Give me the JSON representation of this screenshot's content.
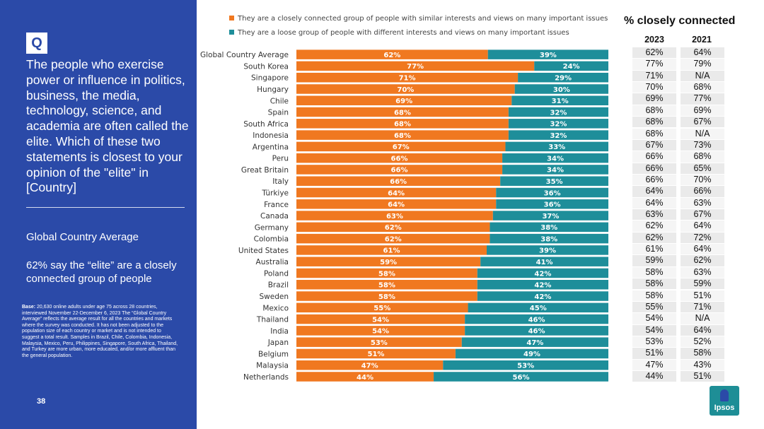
{
  "sidebar": {
    "badge": "Q",
    "question": "The people who exercise power or influence in politics, business, the media, technology, science, and academia are often called the elite. Which of these two statements is closest to your opinion of the \"elite\" in [Country]",
    "gca_title": "Global Country Average",
    "gca_text": "62% say the “elite” are a closely connected group of people",
    "base_label": "Base:",
    "base_text": "20,630 online adults under age 75 across 28 countries, interviewed November 22-December 6, 2023 The “Global Country Average” reflects the average result for all the countries and markets where the survey was conducted. It has not been adjusted to the population size of each country or market and is not intended to suggest a total result. Samples in Brazil, Chile, Colombia, Indonesia, Malaysia, Mexico, Peru, Philippines, Singapore, South Africa, Thailand, and Turkey are more urban, more educated, and/or more affluent than the general population.",
    "page_number": "38"
  },
  "legend": {
    "closely": "They are a closely connected group of people with similar interests and views on many important issues",
    "loose": "They are a loose group of people with different interests and views on many important issues"
  },
  "colors": {
    "closely": "#f07820",
    "loose": "#1e8e9a",
    "sidebar": "#2b4aa8"
  },
  "table": {
    "title": "% closely connected",
    "col_2023": "2023",
    "col_2021": "2021"
  },
  "chart_data": {
    "type": "bar",
    "orientation": "horizontal",
    "stacked": true,
    "categories": [
      "Global Country Average",
      "South Korea",
      "Singapore",
      "Hungary",
      "Chile",
      "Spain",
      "South Africa",
      "Indonesia",
      "Argentina",
      "Peru",
      "Great Britain",
      "Italy",
      "Türkiye",
      "France",
      "Canada",
      "Germany",
      "Colombia",
      "United States",
      "Australia",
      "Poland",
      "Brazil",
      "Sweden",
      "Mexico",
      "Thailand",
      "India",
      "Japan",
      "Belgium",
      "Malaysia",
      "Netherlands"
    ],
    "series": [
      {
        "name": "They are a closely connected group of people with similar interests and views on many important issues",
        "values": [
          62,
          77,
          71,
          70,
          69,
          68,
          68,
          68,
          67,
          66,
          66,
          66,
          64,
          64,
          63,
          62,
          62,
          61,
          59,
          58,
          58,
          58,
          55,
          54,
          54,
          53,
          51,
          47,
          44
        ]
      },
      {
        "name": "They are a loose group of people with different interests and views on many important issues",
        "values": [
          39,
          24,
          29,
          30,
          31,
          32,
          32,
          32,
          33,
          34,
          34,
          35,
          36,
          36,
          37,
          38,
          38,
          39,
          41,
          42,
          42,
          42,
          45,
          46,
          46,
          47,
          49,
          53,
          56
        ]
      }
    ],
    "table_2023": [
      "62%",
      "77%",
      "71%",
      "70%",
      "69%",
      "68%",
      "68%",
      "68%",
      "67%",
      "66%",
      "66%",
      "66%",
      "64%",
      "64%",
      "63%",
      "62%",
      "62%",
      "61%",
      "59%",
      "58%",
      "58%",
      "58%",
      "55%",
      "54%",
      "54%",
      "53%",
      "51%",
      "47%",
      "44%"
    ],
    "table_2021": [
      "64%",
      "79%",
      "N/A",
      "68%",
      "77%",
      "69%",
      "67%",
      "N/A",
      "73%",
      "68%",
      "65%",
      "70%",
      "66%",
      "63%",
      "67%",
      "64%",
      "72%",
      "64%",
      "62%",
      "63%",
      "59%",
      "51%",
      "71%",
      "N/A",
      "64%",
      "52%",
      "58%",
      "43%",
      "51%"
    ],
    "xlim": [
      0,
      100
    ],
    "unit": "%"
  },
  "logo": {
    "text": "Ipsos"
  }
}
